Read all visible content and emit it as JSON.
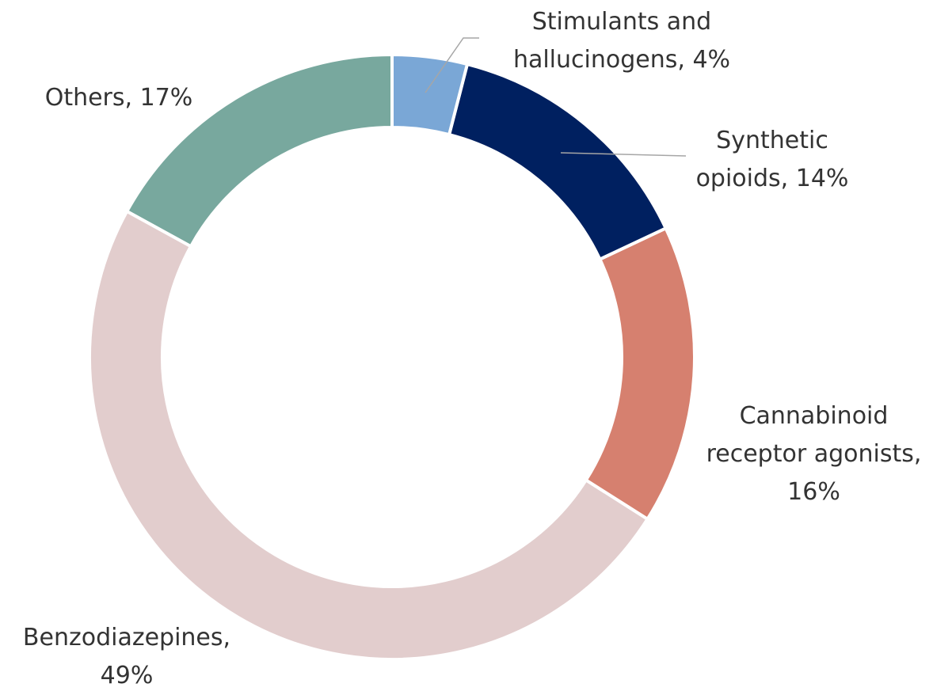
{
  "chart_data": {
    "type": "donut",
    "categories": [
      "Stimulants and hallucinogens,",
      "Synthetic opioids,",
      "Cannabinoid receptor agonists,",
      "Benzodiazepines,",
      "Others,"
    ],
    "values": [
      4,
      14,
      16,
      49,
      17
    ],
    "value_labels": [
      "4%",
      "14%",
      "16%",
      "49%",
      "17%"
    ],
    "colors": [
      "#7aa7d6",
      "#002060",
      "#d6806f",
      "#e2cdcd",
      "#78a89e"
    ]
  }
}
